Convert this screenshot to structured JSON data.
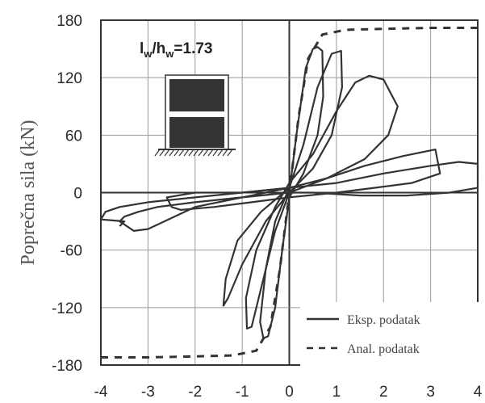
{
  "chart_data": {
    "type": "line",
    "ylabel": "Poprečna sila (kN)",
    "xlabel": "",
    "xlim": [
      -4,
      4
    ],
    "ylim": [
      -180,
      180
    ],
    "grid": true,
    "legend_position": "bottom-right",
    "x_ticks": [
      "-4",
      "-3",
      "-2",
      "-1",
      "0",
      "1",
      "2",
      "3",
      "4"
    ],
    "y_ticks": [
      "180",
      "120",
      "60",
      "0",
      "-60",
      "-120",
      "-180"
    ],
    "annotation": {
      "prefix": "l",
      "sub1": "w",
      "mid": "/h",
      "sub2": "w",
      "suffix": "=1.73"
    },
    "series": [
      {
        "name": "Eksp. podatak",
        "style": "solid",
        "color": "#333333",
        "loops": [
          [
            [
              0,
              0
            ],
            [
              0.15,
              60
            ],
            [
              0.35,
              130
            ],
            [
              0.5,
              150
            ],
            [
              0.6,
              152
            ],
            [
              0.7,
              148
            ],
            [
              0.72,
              100
            ],
            [
              0.6,
              60
            ],
            [
              0.3,
              20
            ],
            [
              0,
              -5
            ],
            [
              -0.15,
              -60
            ],
            [
              -0.3,
              -120
            ],
            [
              -0.45,
              -150
            ],
            [
              -0.55,
              -152
            ],
            [
              -0.62,
              -135
            ],
            [
              -0.5,
              -80
            ],
            [
              -0.3,
              -30
            ],
            [
              0,
              5
            ]
          ],
          [
            [
              0,
              5
            ],
            [
              0.3,
              50
            ],
            [
              0.6,
              110
            ],
            [
              0.9,
              145
            ],
            [
              1.1,
              148
            ],
            [
              1.12,
              110
            ],
            [
              0.9,
              60
            ],
            [
              0.5,
              25
            ],
            [
              0,
              0
            ],
            [
              -0.3,
              -40
            ],
            [
              -0.6,
              -100
            ],
            [
              -0.8,
              -140
            ],
            [
              -0.9,
              -142
            ],
            [
              -0.92,
              -110
            ],
            [
              -0.7,
              -60
            ],
            [
              -0.3,
              -15
            ],
            [
              0,
              10
            ]
          ],
          [
            [
              0,
              10
            ],
            [
              0.5,
              40
            ],
            [
              1.0,
              85
            ],
            [
              1.4,
              115
            ],
            [
              1.7,
              122
            ],
            [
              2.0,
              118
            ],
            [
              2.3,
              90
            ],
            [
              2.1,
              60
            ],
            [
              1.6,
              35
            ],
            [
              0.8,
              15
            ],
            [
              0,
              0
            ],
            [
              -0.5,
              -30
            ],
            [
              -1.0,
              -75
            ],
            [
              -1.3,
              -110
            ],
            [
              -1.4,
              -118
            ],
            [
              -1.35,
              -90
            ],
            [
              -1.1,
              -50
            ],
            [
              -0.6,
              -20
            ],
            [
              0,
              5
            ]
          ],
          [
            [
              0,
              5
            ],
            [
              0.8,
              15
            ],
            [
              1.6,
              28
            ],
            [
              2.4,
              38
            ],
            [
              3.1,
              45
            ],
            [
              3.2,
              20
            ],
            [
              2.6,
              10
            ],
            [
              1.8,
              5
            ],
            [
              1.0,
              0
            ],
            [
              0,
              -5
            ],
            [
              -0.8,
              -10
            ],
            [
              -1.6,
              -15
            ],
            [
              -2.3,
              -18
            ],
            [
              -2.5,
              -15
            ],
            [
              -2.6,
              -5
            ],
            [
              -2.0,
              0
            ],
            [
              -1.0,
              0
            ],
            [
              0,
              5
            ]
          ],
          [
            [
              0,
              5
            ],
            [
              1.0,
              10
            ],
            [
              2.0,
              20
            ],
            [
              3.0,
              28
            ],
            [
              3.6,
              32
            ],
            [
              4.0,
              30
            ],
            [
              4.0,
              5
            ],
            [
              3.4,
              0
            ],
            [
              2.5,
              -3
            ],
            [
              1.5,
              -3
            ],
            [
              0.5,
              0
            ],
            [
              0,
              0
            ],
            [
              -1.0,
              -5
            ],
            [
              -2.0,
              -10
            ],
            [
              -2.8,
              -15
            ],
            [
              -3.2,
              -20
            ],
            [
              -3.5,
              -25
            ],
            [
              -3.6,
              -30
            ],
            [
              -3.3,
              -40
            ],
            [
              -3.0,
              -38
            ],
            [
              -2.0,
              -15
            ],
            [
              -1.0,
              -5
            ],
            [
              0,
              5
            ]
          ],
          [
            [
              0,
              5
            ],
            [
              -1.0,
              0
            ],
            [
              -2.0,
              -5
            ],
            [
              -3.0,
              -10
            ],
            [
              -3.6,
              -15
            ],
            [
              -3.9,
              -20
            ],
            [
              -4.0,
              -28
            ],
            [
              -3.5,
              -30
            ],
            [
              -3.6,
              -35
            ]
          ]
        ]
      },
      {
        "name": "Anal. podatak",
        "style": "dashed",
        "color": "#333333",
        "points": [
          [
            -4,
            -172
          ],
          [
            -3,
            -172
          ],
          [
            -2,
            -171
          ],
          [
            -1.2,
            -170
          ],
          [
            -0.7,
            -165
          ],
          [
            -0.4,
            -140
          ],
          [
            -0.2,
            -80
          ],
          [
            0,
            0
          ],
          [
            0.2,
            80
          ],
          [
            0.4,
            140
          ],
          [
            0.7,
            165
          ],
          [
            1.2,
            170
          ],
          [
            2,
            171
          ],
          [
            3,
            172
          ],
          [
            4,
            172
          ]
        ]
      }
    ]
  }
}
